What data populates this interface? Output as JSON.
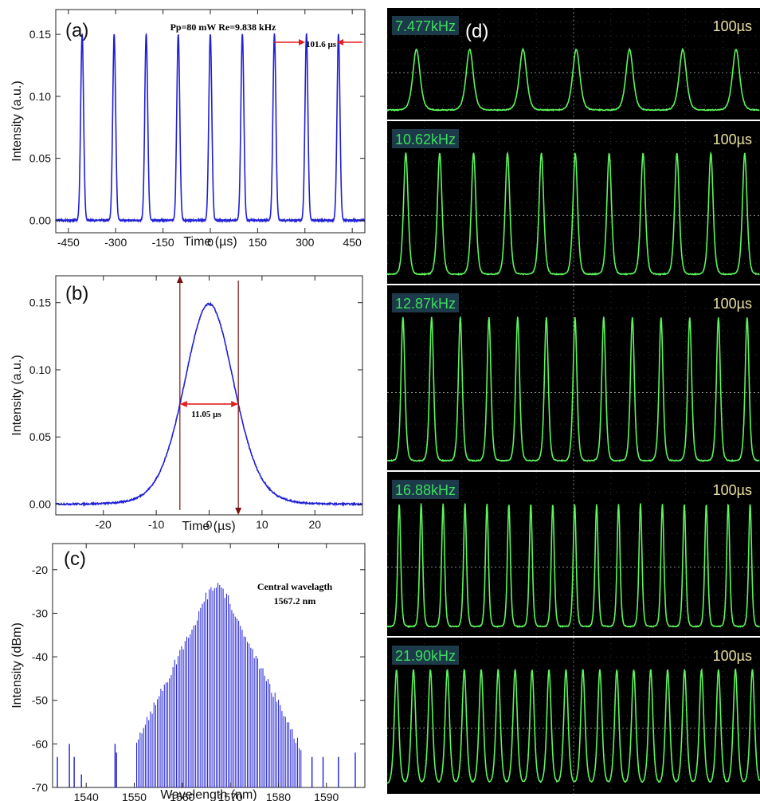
{
  "chart_data": [
    {
      "panel": "(a)",
      "type": "line",
      "annotation": "Pp=80 mW Re=9.838 kHz",
      "period_label": "101.6 µs",
      "xlabel": "Time (µs)",
      "ylabel": "Intensity (a.u.)",
      "xlim": [
        -490,
        490
      ],
      "ylim": [
        -0.01,
        0.17
      ],
      "x_ticks": [
        -450,
        -300,
        -150,
        0,
        150,
        300,
        450
      ],
      "y_ticks": [
        0.0,
        0.05,
        0.1,
        0.15
      ],
      "y_tick_labels": [
        "0.00",
        "0.05",
        "0.10",
        "0.15"
      ],
      "series": [
        {
          "peak_times": [
            -406.4,
            -304.8,
            -203.2,
            -101.6,
            0,
            101.6,
            203.2,
            304.8,
            406.4
          ],
          "peak_value": 0.15,
          "pulse_fwhm": 11.05,
          "color": "#1f1fd6"
        }
      ]
    },
    {
      "panel": "(b)",
      "type": "line",
      "fwhm_label": "11.05 µs",
      "xlabel": "Time (µs)",
      "ylabel": "Intensity (a.u.)",
      "xlim": [
        -29,
        29
      ],
      "ylim": [
        -0.008,
        0.17
      ],
      "x_ticks": [
        -20,
        -10,
        0,
        10,
        20
      ],
      "y_ticks": [
        0.0,
        0.05,
        0.1,
        0.15
      ],
      "y_tick_labels": [
        "0.00",
        "0.05",
        "0.10",
        "0.15"
      ],
      "fwhm": 11.05,
      "peak_value": 0.149,
      "color": "#1f1fd6"
    },
    {
      "panel": "(c)",
      "type": "line",
      "annotation_line1": "Central wavelagth",
      "annotation_line2": "1567.2 nm",
      "xlabel": "Wavelength (nm)",
      "ylabel": "Intensity (dBm)",
      "xlim": [
        1533,
        1598
      ],
      "ylim": [
        -70,
        -14
      ],
      "x_ticks": [
        1540,
        1550,
        1560,
        1570,
        1580,
        1590
      ],
      "y_ticks": [
        -70,
        -60,
        -50,
        -40,
        -30,
        -20
      ],
      "central_wavelength": 1567.2,
      "peak_dbm": -21,
      "color": "#1f1fd6"
    },
    {
      "panel": "(d)",
      "type": "line",
      "traces": [
        {
          "freq_label": "7.477kHz",
          "time_div": "100µs",
          "pulses": 7
        },
        {
          "freq_label": "10.62kHz",
          "time_div": "100µs",
          "pulses": 11
        },
        {
          "freq_label": "12.87kHz",
          "time_div": "100µs",
          "pulses": 13
        },
        {
          "freq_label": "16.88kHz",
          "time_div": "100µs",
          "pulses": 17
        },
        {
          "freq_label": "21.90kHz",
          "time_div": "100µs",
          "pulses": 22
        }
      ],
      "trace_color": "#5cf55c",
      "background": "#000000"
    }
  ]
}
